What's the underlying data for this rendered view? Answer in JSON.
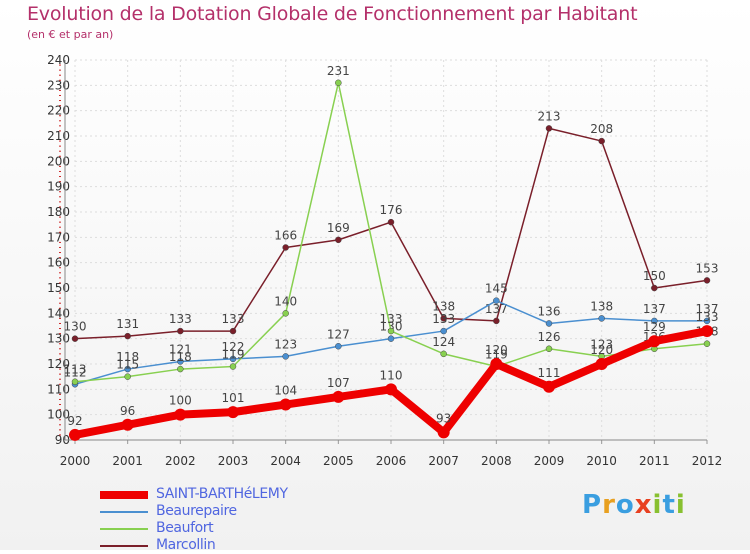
{
  "title": "Evolution de la Dotation Globale de Fonctionnement par Habitant",
  "subtitle": "(en € et par an)",
  "logo": {
    "letters": [
      {
        "ch": "P",
        "color": "#3a9ee0"
      },
      {
        "ch": "r",
        "color": "#e8a020"
      },
      {
        "ch": "o",
        "color": "#3a9ee0"
      },
      {
        "ch": "x",
        "color": "#e84020"
      },
      {
        "ch": "i",
        "color": "#88c030"
      },
      {
        "ch": "t",
        "color": "#3a9ee0"
      },
      {
        "ch": "i",
        "color": "#88c030"
      }
    ]
  },
  "chart_data": {
    "type": "line",
    "x": [
      "2000",
      "2001",
      "2002",
      "2003",
      "2004",
      "2005",
      "2006",
      "2007",
      "2008",
      "2009",
      "2010",
      "2011",
      "2012"
    ],
    "ylim": [
      90,
      240
    ],
    "yticks": [
      90,
      100,
      110,
      120,
      130,
      140,
      150,
      160,
      170,
      180,
      190,
      200,
      210,
      220,
      230,
      240
    ],
    "grid": true,
    "legend": "bottom-left",
    "series": [
      {
        "name": "Marcollin",
        "color": "#7a1f2a",
        "values": [
          130,
          131,
          133,
          133,
          166,
          169,
          176,
          138,
          137,
          213,
          208,
          150,
          153
        ]
      },
      {
        "name": "Beaurepaire",
        "color": "#4a8fd0",
        "values": [
          112,
          118,
          121,
          122,
          123,
          127,
          130,
          133,
          145,
          136,
          138,
          137,
          137
        ]
      },
      {
        "name": "Beaufort",
        "color": "#88d050",
        "values": [
          113,
          115,
          118,
          119,
          140,
          231,
          133,
          124,
          119,
          126,
          123,
          126,
          128
        ]
      },
      {
        "name": "SAINT-BARTHéLEMY",
        "color": "#ee0000",
        "values": [
          92,
          96,
          100,
          101,
          104,
          107,
          110,
          93,
          120,
          111,
          120,
          129,
          133
        ]
      }
    ],
    "labels": [
      {
        "series": "Marcollin",
        "values": [
          "130",
          "131",
          "133",
          "133",
          "166",
          "169",
          "176",
          "138",
          "137",
          "213",
          "208",
          "150",
          "153"
        ]
      },
      {
        "series": "Beaurepaire",
        "values": [
          "112",
          "118",
          "121",
          "122",
          "123",
          "127",
          "130",
          "133",
          "145",
          "136",
          "138",
          "137",
          "137"
        ]
      },
      {
        "series": "Beaufort",
        "values": [
          "113",
          "115",
          "118",
          "119",
          "140",
          "231",
          "133",
          "124",
          "119",
          "126",
          "123",
          "126",
          "128"
        ]
      },
      {
        "series": "SAINT-BARTHéLEMY",
        "values": [
          "92",
          "96",
          "100",
          "101",
          "104",
          "107",
          "110",
          "93",
          "120",
          "111",
          "120",
          "129",
          "133"
        ]
      }
    ]
  },
  "legend_items": [
    {
      "name": "SAINT-BARTHéLEMY",
      "color": "#ee0000",
      "thick": true
    },
    {
      "name": "Beaurepaire",
      "color": "#4a8fd0",
      "thick": false
    },
    {
      "name": "Beaufort",
      "color": "#88d050",
      "thick": false
    },
    {
      "name": "Marcollin",
      "color": "#7a1f2a",
      "thick": false
    }
  ]
}
